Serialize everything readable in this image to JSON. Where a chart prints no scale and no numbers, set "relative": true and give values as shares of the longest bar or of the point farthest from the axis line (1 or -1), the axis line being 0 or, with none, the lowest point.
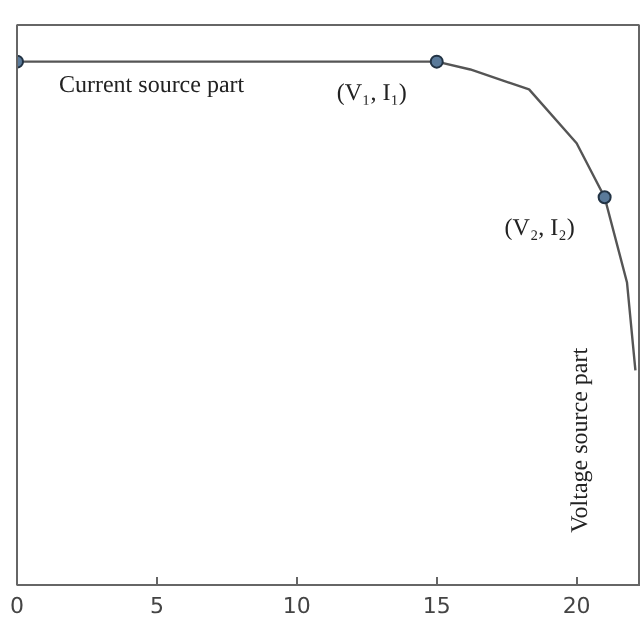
{
  "chart_data": {
    "type": "line",
    "relative": true,
    "series": [
      {
        "color": "#555555",
        "x": [
          0,
          15,
          16.2,
          18.3,
          20.0,
          21.0,
          21.8,
          22.1
        ],
        "values": [
          1,
          1,
          0.985,
          0.947,
          0.844,
          0.741,
          0.578,
          0.41
        ]
      },
      {
        "type": "scatter",
        "marker": "circle",
        "color": "#5a7a9a",
        "x": [
          0,
          15,
          21.0
        ],
        "values": [
          1,
          1,
          0.741
        ]
      }
    ],
    "xlim": [
      0,
      22.3
    ],
    "xticks": [
      0,
      5,
      10,
      15,
      20
    ],
    "tick_labels": "x",
    "grid": false,
    "annotations": [
      "Current source part",
      {
        "text": "(V₁, I₁)",
        "x": 15,
        "y": 1
      },
      {
        "text": "(V₂, I₂)",
        "x": 21.0,
        "y": 0.741
      },
      "Voltage source part"
    ]
  }
}
